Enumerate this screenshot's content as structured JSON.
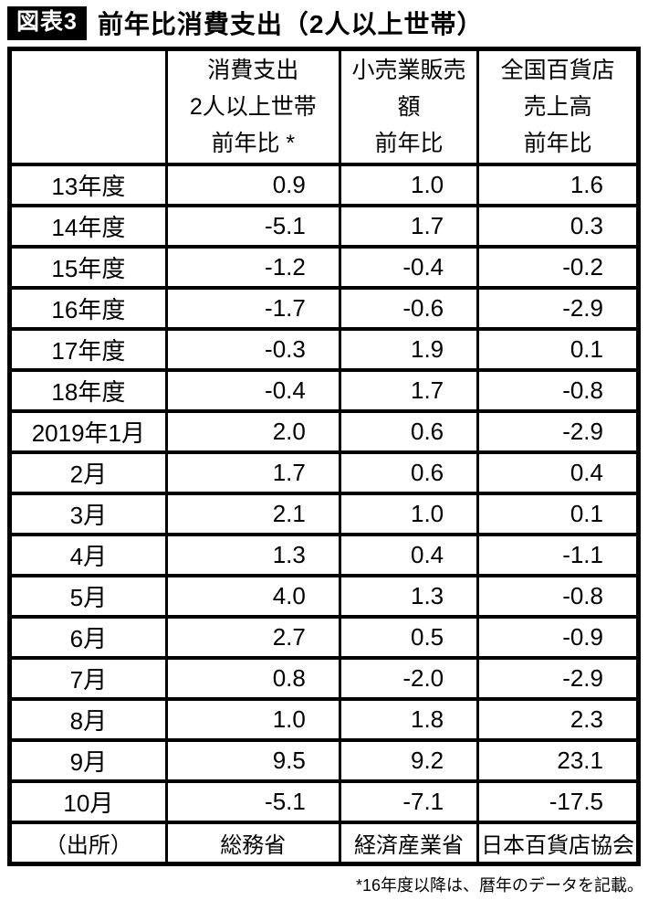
{
  "title": {
    "badge": "図表3",
    "text": "前年比消費支出（2人以上世帯）"
  },
  "colors": {
    "badge_bg": "#000000",
    "badge_text": "#ffffff",
    "table_border": "#000000"
  },
  "table": {
    "columns": [
      {
        "lines": [
          "消費支出",
          "2人以上世帯",
          "前年比 *"
        ]
      },
      {
        "lines": [
          "小売業販売",
          "額",
          "前年比"
        ]
      },
      {
        "lines": [
          "全国百貨店",
          "売上高",
          "前年比"
        ]
      }
    ],
    "rows": [
      {
        "label": "13年度",
        "values": [
          "0.9",
          "1.0",
          "1.6"
        ]
      },
      {
        "label": "14年度",
        "values": [
          "-5.1",
          "1.7",
          "0.3"
        ]
      },
      {
        "label": "15年度",
        "values": [
          "-1.2",
          "-0.4",
          "-0.2"
        ]
      },
      {
        "label": "16年度",
        "values": [
          "-1.7",
          "-0.6",
          "-2.9"
        ]
      },
      {
        "label": "17年度",
        "values": [
          "-0.3",
          "1.9",
          "0.1"
        ]
      },
      {
        "label": "18年度",
        "values": [
          "-0.4",
          "1.7",
          "-0.8"
        ]
      },
      {
        "label": "2019年1月",
        "values": [
          "2.0",
          "0.6",
          "-2.9"
        ]
      },
      {
        "label": "2月",
        "values": [
          "1.7",
          "0.6",
          "0.4"
        ]
      },
      {
        "label": "3月",
        "values": [
          "2.1",
          "1.0",
          "0.1"
        ]
      },
      {
        "label": "4月",
        "values": [
          "1.3",
          "0.4",
          "-1.1"
        ]
      },
      {
        "label": "5月",
        "values": [
          "4.0",
          "1.3",
          "-0.8"
        ]
      },
      {
        "label": "6月",
        "values": [
          "2.7",
          "0.5",
          "-0.9"
        ]
      },
      {
        "label": "7月",
        "values": [
          "0.8",
          "-2.0",
          "-2.9"
        ]
      },
      {
        "label": "8月",
        "values": [
          "1.0",
          "1.8",
          "2.3"
        ]
      },
      {
        "label": "9月",
        "values": [
          "9.5",
          "9.2",
          "23.1"
        ]
      },
      {
        "label": "10月",
        "values": [
          "-5.1",
          "-7.1",
          "-17.5"
        ]
      }
    ],
    "source_row": {
      "label": "（出所）",
      "values": [
        "総務省",
        "経済産業省",
        "日本百貨店協会"
      ]
    }
  },
  "footnote": "*16年度以降は、暦年のデータを記載。",
  "chart_data": {
    "type": "table",
    "title": "前年比消費支出（2人以上世帯）",
    "categories": [
      "13年度",
      "14年度",
      "15年度",
      "16年度",
      "17年度",
      "18年度",
      "2019年1月",
      "2月",
      "3月",
      "4月",
      "5月",
      "6月",
      "7月",
      "8月",
      "9月",
      "10月"
    ],
    "series": [
      {
        "name": "消費支出 2人以上世帯 前年比*",
        "values": [
          0.9,
          -5.1,
          -1.2,
          -1.7,
          -0.3,
          -0.4,
          2.0,
          1.7,
          2.1,
          1.3,
          4.0,
          2.7,
          0.8,
          1.0,
          9.5,
          -5.1
        ]
      },
      {
        "name": "小売業販売額 前年比",
        "values": [
          1.0,
          1.7,
          -0.4,
          -0.6,
          1.9,
          1.7,
          0.6,
          0.6,
          1.0,
          0.4,
          1.3,
          0.5,
          -2.0,
          1.8,
          9.2,
          -7.1
        ]
      },
      {
        "name": "全国百貨店売上高 前年比",
        "values": [
          1.6,
          0.3,
          -0.2,
          -2.9,
          0.1,
          -0.8,
          -2.9,
          0.4,
          0.1,
          -1.1,
          -0.8,
          -0.9,
          -2.9,
          2.3,
          23.1,
          -17.5
        ]
      }
    ],
    "sources": [
      "総務省",
      "経済産業省",
      "日本百貨店協会"
    ],
    "footnote": "*16年度以降は、暦年のデータを記載。"
  }
}
